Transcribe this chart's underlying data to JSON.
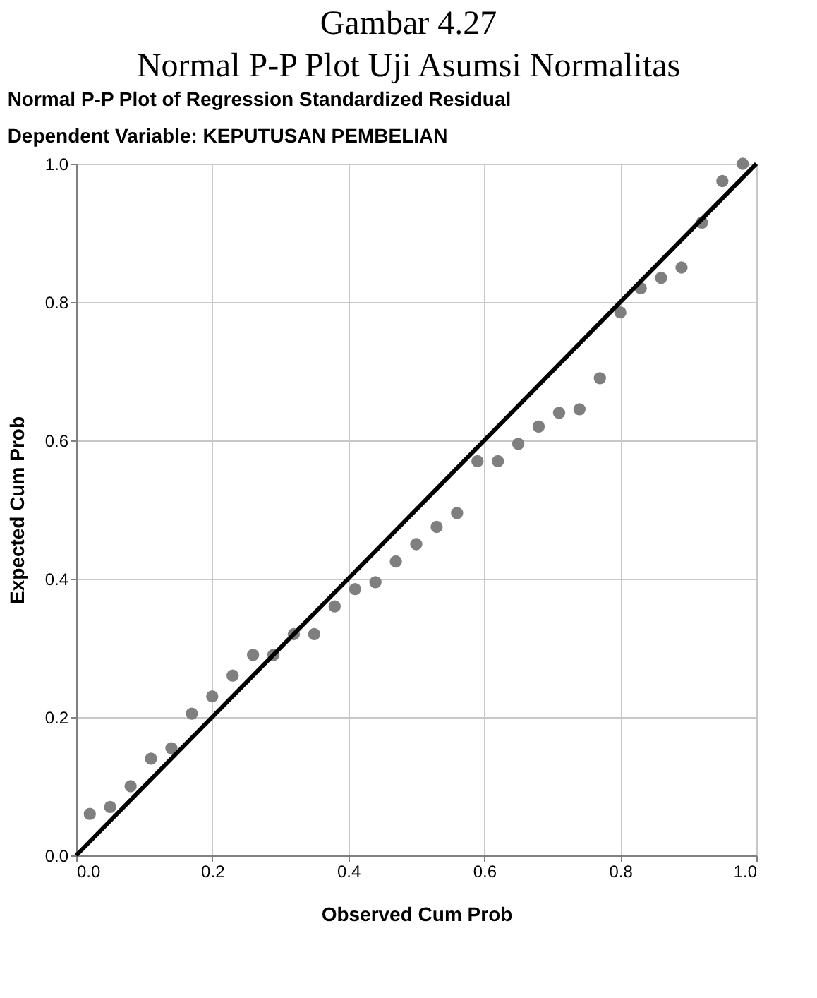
{
  "chart_data": {
    "type": "scatter",
    "title": "Normal P-P Plot of Regression Standardized Residual",
    "subtitle": "Dependent Variable: KEPUTUSAN PEMBELIAN",
    "annotations": [
      "Gambar 4.27",
      "Normal P-P Plot Uji Asumsi Normalitas"
    ],
    "xlabel": "Observed Cum Prob",
    "ylabel": "Expected Cum Prob",
    "xlim": [
      0,
      1
    ],
    "ylim": [
      0,
      1
    ],
    "xticks": [
      {
        "value": 0,
        "label": "0.0"
      },
      {
        "value": 0.2,
        "label": "0.2"
      },
      {
        "value": 0.4,
        "label": "0.4"
      },
      {
        "value": 0.6,
        "label": "0.6"
      },
      {
        "value": 0.8,
        "label": "0.8"
      },
      {
        "value": 1,
        "label": "1.0"
      }
    ],
    "yticks": [
      {
        "value": 0,
        "label": "0.0"
      },
      {
        "value": 0.2,
        "label": "0.2"
      },
      {
        "value": 0.4,
        "label": "0.4"
      },
      {
        "value": 0.6,
        "label": "0.6"
      },
      {
        "value": 0.8,
        "label": "0.8"
      },
      {
        "value": 1,
        "label": "1.0"
      }
    ],
    "grid": true,
    "series": [
      {
        "marker": "circle",
        "color": "#7f7f7f",
        "x": [
          0.02,
          0.05,
          0.08,
          0.11,
          0.14,
          0.17,
          0.2,
          0.23,
          0.26,
          0.29,
          0.32,
          0.35,
          0.38,
          0.41,
          0.44,
          0.47,
          0.5,
          0.53,
          0.56,
          0.59,
          0.62,
          0.65,
          0.68,
          0.71,
          0.74,
          0.77,
          0.8,
          0.83,
          0.86,
          0.89,
          0.92,
          0.95,
          0.98
        ],
        "values": [
          0.06,
          0.07,
          0.1,
          0.14,
          0.155,
          0.205,
          0.23,
          0.26,
          0.29,
          0.29,
          0.32,
          0.32,
          0.36,
          0.385,
          0.395,
          0.425,
          0.45,
          0.475,
          0.495,
          0.57,
          0.57,
          0.595,
          0.62,
          0.64,
          0.645,
          0.69,
          0.785,
          0.82,
          0.835,
          0.85,
          0.915,
          0.975,
          1.0
        ]
      },
      {
        "type": "line",
        "color": "#000000",
        "x": [
          0,
          1
        ],
        "values": [
          0,
          1
        ]
      }
    ]
  }
}
